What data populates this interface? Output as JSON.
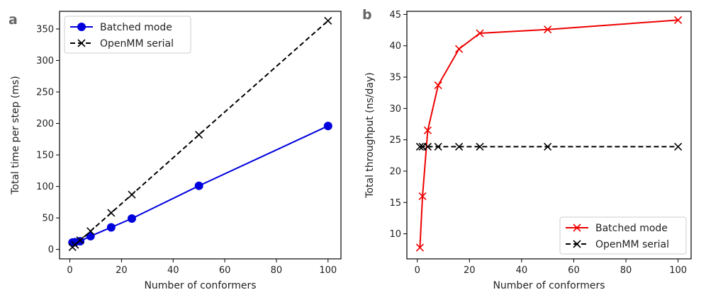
{
  "chart_data": [
    {
      "type": "line",
      "panel_label": "a",
      "xlabel": "Number of conformers",
      "ylabel": "Total time per step (ms)",
      "xlim": [
        -4,
        105
      ],
      "ylim": [
        -15,
        378
      ],
      "xticks": [
        "0",
        "20",
        "40",
        "60",
        "80",
        "100"
      ],
      "yticks": [
        "0",
        "50",
        "100",
        "150",
        "200",
        "250",
        "300",
        "350"
      ],
      "legend_position": "top-left",
      "series": [
        {
          "name": "Batched mode",
          "color": "#0000dd",
          "marker": "circle",
          "dash": "solid",
          "x": [
            1,
            2,
            4,
            8,
            16,
            24,
            50,
            100
          ],
          "y": [
            11,
            11.5,
            13,
            21,
            35,
            49,
            101,
            196
          ]
        },
        {
          "name": "OpenMM serial",
          "color": "#000000",
          "marker": "x",
          "dash": "dashed",
          "x": [
            1,
            2,
            4,
            8,
            16,
            24,
            50,
            100
          ],
          "y": [
            3.6,
            7.3,
            14.5,
            29,
            58,
            87,
            182,
            363
          ]
        }
      ]
    },
    {
      "type": "line",
      "panel_label": "b",
      "xlabel": "Number of conformers",
      "ylabel": "Total throughput (ns/day)",
      "xlim": [
        -4,
        105
      ],
      "ylim": [
        6,
        45.5
      ],
      "xticks": [
        "0",
        "20",
        "40",
        "60",
        "80",
        "100"
      ],
      "yticks": [
        "10",
        "15",
        "20",
        "25",
        "30",
        "35",
        "40",
        "45"
      ],
      "legend_position": "bottom-right",
      "series": [
        {
          "name": "Batched mode",
          "color": "#ee0000",
          "marker": "x",
          "dash": "solid",
          "x": [
            1,
            2,
            4,
            8,
            16,
            24,
            50,
            100
          ],
          "y": [
            7.8,
            16,
            26.5,
            33.7,
            39.5,
            42,
            42.6,
            44.1
          ]
        },
        {
          "name": "OpenMM serial",
          "color": "#000000",
          "marker": "x",
          "dash": "dashed",
          "x": [
            1,
            2,
            4,
            8,
            16,
            24,
            50,
            100
          ],
          "y": [
            23.9,
            23.9,
            23.9,
            23.9,
            23.9,
            23.9,
            23.9,
            23.9
          ]
        }
      ]
    }
  ]
}
